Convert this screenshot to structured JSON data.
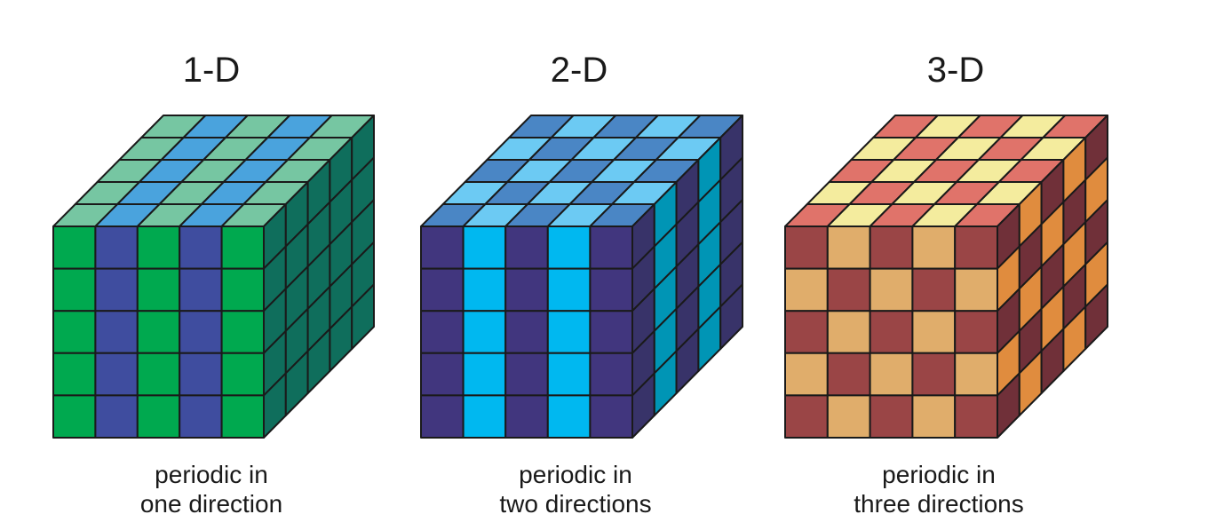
{
  "panels": [
    {
      "title": "1-D",
      "caption_line1": "periodic in",
      "caption_line2": "one direction",
      "colors": {
        "front_a": "#00a94f",
        "front_b": "#3f4d9f",
        "top_a": "#76c6a2",
        "top_b": "#4aa3dd",
        "side": "#0f6e5c"
      }
    },
    {
      "title": "2-D",
      "caption_line1": "periodic in",
      "caption_line2": "two directions",
      "colors": {
        "front_a": "#41367e",
        "front_b": "#00b8f0",
        "top_a": "#4a86c5",
        "top_b": "#6ccaf3",
        "side_a": "#383369",
        "side_b": "#0095b5"
      }
    },
    {
      "title": "3-D",
      "caption_line1": "periodic in",
      "caption_line2": "three directions",
      "colors": {
        "front_a": "#9a4546",
        "front_b": "#e0ad6b",
        "top_a": "#e0736a",
        "top_b": "#f4ec9e",
        "side_a": "#703039",
        "side_b": "#e08c3e"
      }
    }
  ]
}
